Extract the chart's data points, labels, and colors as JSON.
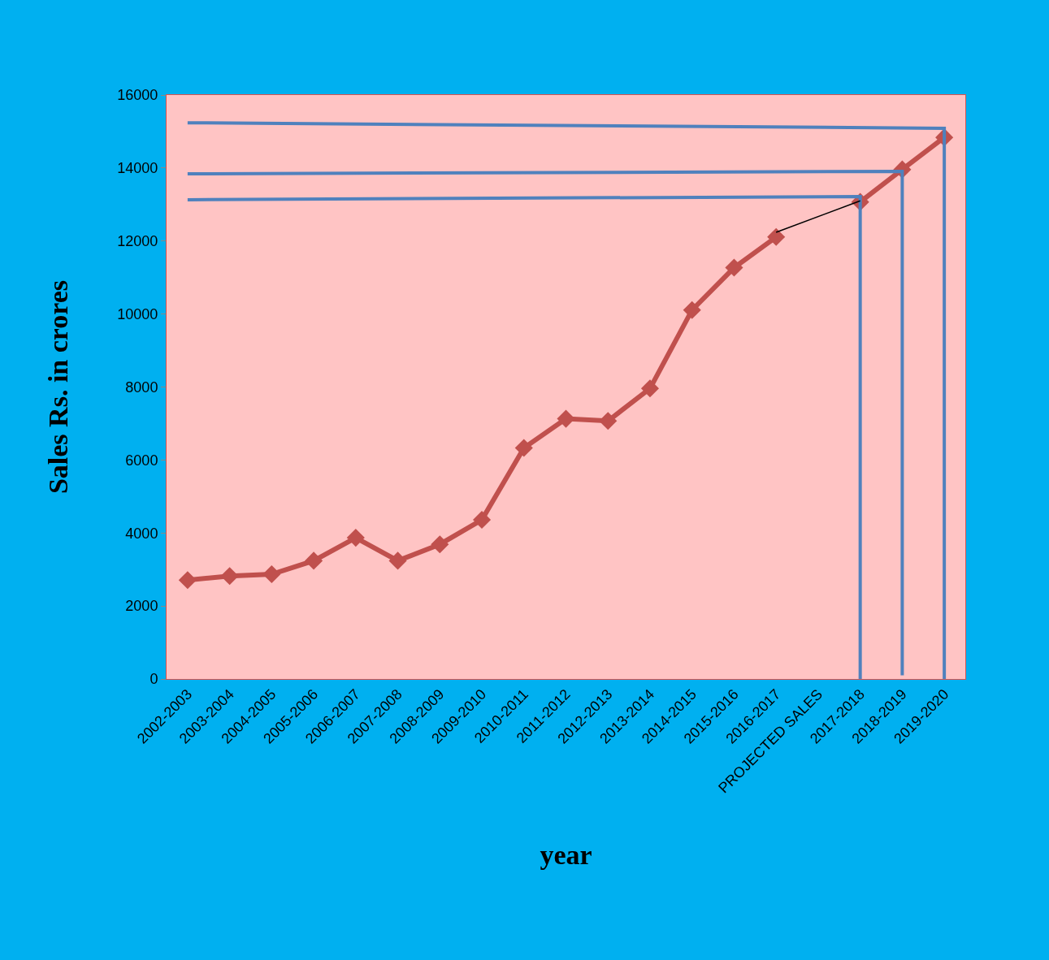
{
  "chart_data": {
    "type": "line",
    "xlabel": "year",
    "ylabel": "Sales Rs. in crores",
    "categories": [
      "2002-2003",
      "2003-2004",
      "2004-2005",
      "2005-2006",
      "2006-2007",
      "2007-2008",
      "2008-2009",
      "2009-2010",
      "2010-2011",
      "2011-2012",
      "2012-2013",
      "2013-2014",
      "2014-2015",
      "2015-2016",
      "2016-2017",
      "PROJECTED SALES",
      "2017-2018",
      "2018-2019",
      "2019-2020"
    ],
    "series": [
      {
        "color": "#c0504d",
        "marker": "diamond",
        "values": [
          2710,
          2820,
          2870,
          3240,
          3870,
          3240,
          3690,
          4360,
          6330,
          7130,
          7070,
          7960,
          10110,
          11270,
          12110,
          null,
          13070,
          13960,
          14840
        ]
      },
      {
        "color": "#4f81bd",
        "marker": "none",
        "x": [
          "2002-2003",
          "2017-2018",
          "2017-2018"
        ],
        "values": [
          13130,
          13220,
          0
        ]
      },
      {
        "color": "#4f81bd",
        "marker": "none",
        "x": [
          "2002-2003",
          "2018-2019",
          "2018-2019"
        ],
        "values": [
          13840,
          13910,
          100
        ]
      },
      {
        "color": "#4f81bd",
        "marker": "none",
        "x": [
          "2002-2003",
          "2019-2020",
          "2019-2020"
        ],
        "values": [
          15240,
          15090,
          0
        ]
      },
      {
        "color": "#000000",
        "marker": "none",
        "x": [
          "2016-2017",
          "2017-2018"
        ],
        "values": [
          12240,
          13100
        ]
      }
    ],
    "ylim": [
      0,
      16000
    ],
    "yticks": [
      0,
      2000,
      4000,
      6000,
      8000,
      10000,
      12000,
      14000,
      16000
    ],
    "grid": false
  }
}
